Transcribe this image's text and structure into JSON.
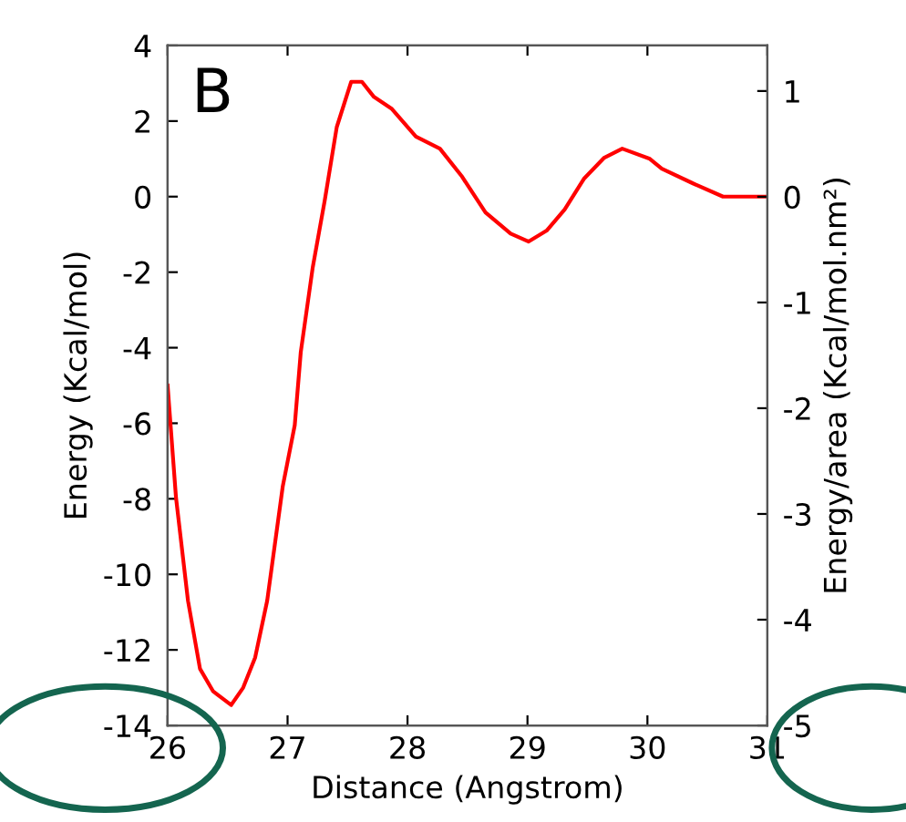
{
  "chart_data": {
    "type": "line",
    "x": [
      26.0,
      26.07,
      26.17,
      26.27,
      26.38,
      26.53,
      26.63,
      26.73,
      26.83,
      26.96,
      27.06,
      27.11,
      27.21,
      27.31,
      27.41,
      27.53,
      27.62,
      27.72,
      27.87,
      28.07,
      28.27,
      28.45,
      28.65,
      28.86,
      29.01,
      29.16,
      29.31,
      29.47,
      29.64,
      29.79,
      30.02,
      30.12,
      30.38,
      30.63,
      31.0
    ],
    "series": [
      {
        "color": "#ff0000",
        "values": [
          -5.0,
          -7.97,
          -10.7,
          -12.5,
          -13.1,
          -13.46,
          -13.0,
          -12.2,
          -10.7,
          -7.67,
          -6.05,
          -4.12,
          -1.87,
          -0.1,
          1.84,
          3.04,
          3.04,
          2.64,
          2.32,
          1.59,
          1.27,
          0.55,
          -0.42,
          -0.98,
          -1.19,
          -0.9,
          -0.34,
          0.47,
          1.03,
          1.27,
          1.0,
          0.74,
          0.35,
          0.0,
          0.0
        ]
      }
    ],
    "xlabel": "Distance (Angstrom)",
    "ylabel": "Energy (Kcal/mol)",
    "y2label": "Energy/area (Kcal/mol.nm²)",
    "xlim": [
      26,
      31
    ],
    "xticks": [
      26,
      27,
      28,
      29,
      30,
      31
    ],
    "ylim": [
      -14,
      4
    ],
    "yticks": [
      -14,
      -12,
      -10,
      -8,
      -6,
      -4,
      -2,
      0,
      2,
      4
    ],
    "y2lim": [
      -5,
      1.43
    ],
    "y2ticks": [
      -5,
      -4,
      -3,
      -2,
      -1,
      0,
      1
    ],
    "annotations": [
      "B"
    ],
    "grid": false,
    "legend": false,
    "marker": "none",
    "line_style": "solid"
  }
}
